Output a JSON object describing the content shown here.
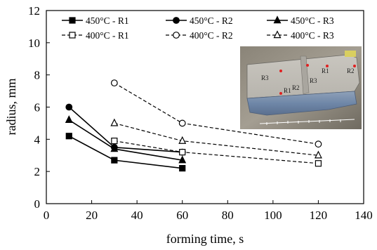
{
  "chart_data": {
    "type": "line",
    "xlabel": "forming time, s",
    "ylabel": "radius, mm",
    "xlim": [
      0,
      140
    ],
    "ylim": [
      0,
      12
    ],
    "x_ticks": [
      0,
      20,
      40,
      60,
      80,
      100,
      120,
      140
    ],
    "y_ticks": [
      0,
      2,
      4,
      6,
      8,
      10,
      12
    ],
    "grid": false,
    "legend": "top, three columns",
    "series": [
      {
        "name": "450°C - R1",
        "x": [
          10,
          30,
          60
        ],
        "y": [
          4.2,
          2.7,
          2.2
        ],
        "marker": "filled-square",
        "line": "solid",
        "color": "#000000"
      },
      {
        "name": "450°C - R2",
        "x": [
          10,
          30,
          60
        ],
        "y": [
          6.0,
          3.5,
          3.2
        ],
        "marker": "filled-circle",
        "line": "solid",
        "color": "#000000"
      },
      {
        "name": "450°C - R3",
        "x": [
          10,
          30,
          60
        ],
        "y": [
          5.2,
          3.4,
          2.7
        ],
        "marker": "filled-triangle",
        "line": "solid",
        "color": "#000000"
      },
      {
        "name": "400°C - R1",
        "x": [
          30,
          60,
          120
        ],
        "y": [
          3.9,
          3.2,
          2.5
        ],
        "marker": "open-square",
        "line": "dashed",
        "color": "#000000"
      },
      {
        "name": "400°C - R2",
        "x": [
          30,
          60,
          120
        ],
        "y": [
          7.5,
          5.0,
          3.7
        ],
        "marker": "open-circle",
        "line": "dashed",
        "color": "#000000"
      },
      {
        "name": "400°C - R3",
        "x": [
          30,
          60,
          120
        ],
        "y": [
          5.0,
          3.9,
          3.0
        ],
        "marker": "open-triangle",
        "line": "dashed",
        "color": "#000000"
      }
    ],
    "inset_photo": {
      "labels": [
        "R3",
        "R1",
        "R2",
        "R1",
        "R3",
        "R2"
      ]
    }
  }
}
